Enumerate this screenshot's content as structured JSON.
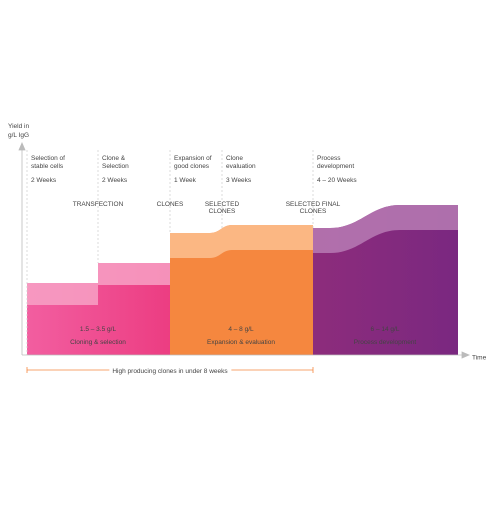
{
  "axis": {
    "y_label": [
      "Yield in",
      "g/L IgG"
    ],
    "x_label": "Time"
  },
  "stages": [
    {
      "title": [
        "Selection of",
        "stable cells"
      ],
      "duration": "2 Weeks"
    },
    {
      "title": [
        "Clone &",
        "Selection"
      ],
      "duration": "2 Weeks"
    },
    {
      "title": [
        "Expansion of",
        "good clones"
      ],
      "duration": "1 Week"
    },
    {
      "title": [
        "Clone",
        "evaluation"
      ],
      "duration": "3 Weeks"
    },
    {
      "title": [
        "Process",
        "development"
      ],
      "duration": "4 – 20 Weeks"
    }
  ],
  "milestones": [
    [
      "TRANSFECTION"
    ],
    [
      "CLONES"
    ],
    [
      "SELECTED",
      "CLONES"
    ],
    [
      "SELECTED FINAL",
      "CLONES"
    ]
  ],
  "phases": [
    {
      "yield": "1.5 – 3.5 g/L",
      "label": "Cloning & selection"
    },
    {
      "yield": "4 – 8 g/L",
      "label": "Expansion & evaluation"
    },
    {
      "yield": "6 – 14 g/L",
      "label": "Process development"
    }
  ],
  "footnote": "High producing clones in under 8 weeks"
}
